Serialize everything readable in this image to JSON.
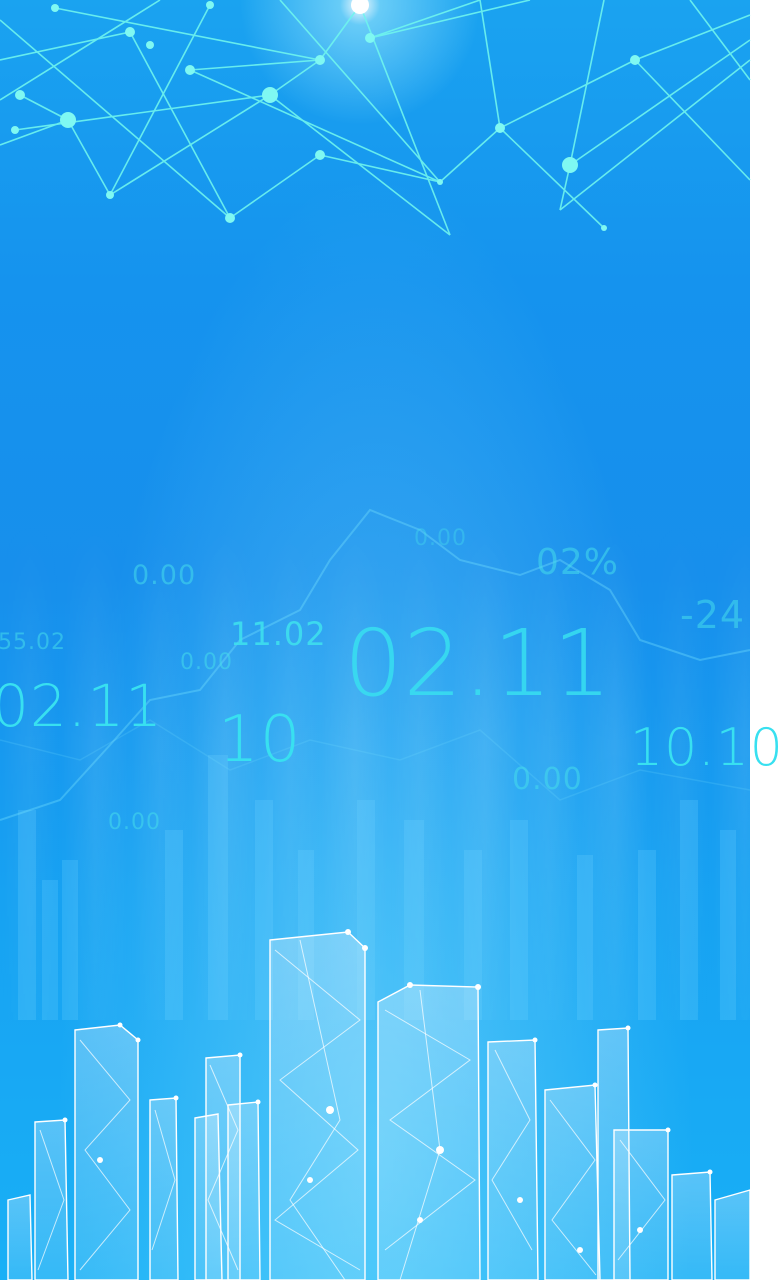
{
  "colors": {
    "background_top": "#1aa3f0",
    "background_mid": "#178fec",
    "background_bottom": "#19b0f6",
    "numbers": "#38e0f0",
    "network": "#5ff2ee",
    "buildings": "#ffffff"
  },
  "numbers": [
    {
      "id": "n1",
      "text": "0.00"
    },
    {
      "id": "n2",
      "text": "55.02"
    },
    {
      "id": "n3",
      "text": "02.11"
    },
    {
      "id": "n4",
      "text": "11.02"
    },
    {
      "id": "n5",
      "text": "0.00"
    },
    {
      "id": "n6",
      "text": "10"
    },
    {
      "id": "n7",
      "text": "0.00"
    },
    {
      "id": "n8",
      "text": "02.11"
    },
    {
      "id": "n9",
      "text": "0.00"
    },
    {
      "id": "n10",
      "text": "02%"
    },
    {
      "id": "n11",
      "text": "-24"
    },
    {
      "id": "n12",
      "text": "10.10"
    },
    {
      "id": "n13",
      "text": "0.00"
    }
  ]
}
